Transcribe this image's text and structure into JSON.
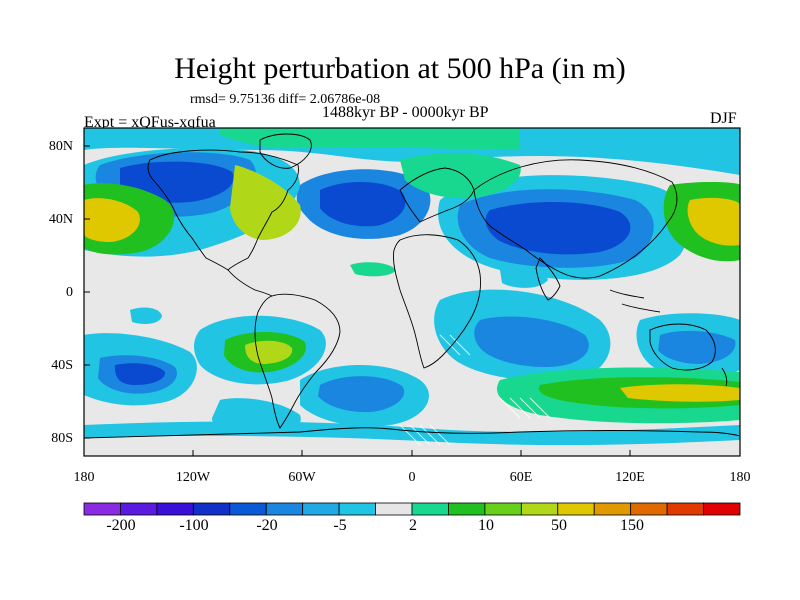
{
  "title": "Height perturbation at 500 hPa (in m)",
  "stats": "rmsd= 9.75136 diff= 2.06786e-08",
  "period": "1488kyr BP - 0000kyr BP",
  "experiment": "Expt = xQFus-xqfua",
  "season": "DJF",
  "lat_ticks": [
    "80N",
    "40N",
    "0",
    "40S",
    "80S"
  ],
  "lon_ticks": [
    "180",
    "120W",
    "60W",
    "0",
    "60E",
    "120E",
    "180"
  ],
  "colorbar": {
    "labels": [
      "-200",
      "-100",
      "-20",
      "-5",
      "2",
      "10",
      "50",
      "150"
    ],
    "colors": [
      "#8a2be2",
      "#5a1ae0",
      "#3a10d8",
      "#1030c8",
      "#0a5ad8",
      "#1a86e0",
      "#22a8e2",
      "#20c4e4",
      "#e6e6e6",
      "#18d890",
      "#20c020",
      "#68d01a",
      "#b0d818",
      "#e0c800",
      "#e09a00",
      "#e06a00",
      "#e03a00",
      "#e00000"
    ]
  },
  "map_colors": {
    "neutral": "#e8e8e8",
    "pos_weak": "#18d890",
    "pos_mid": "#20c020",
    "pos_high": "#b0d818",
    "pos_strong": "#e0c800",
    "neg_weak": "#22c4e4",
    "neg_mid": "#1a86e0",
    "neg_strong": "#0a4ad0",
    "neg_max": "#1030c8"
  }
}
